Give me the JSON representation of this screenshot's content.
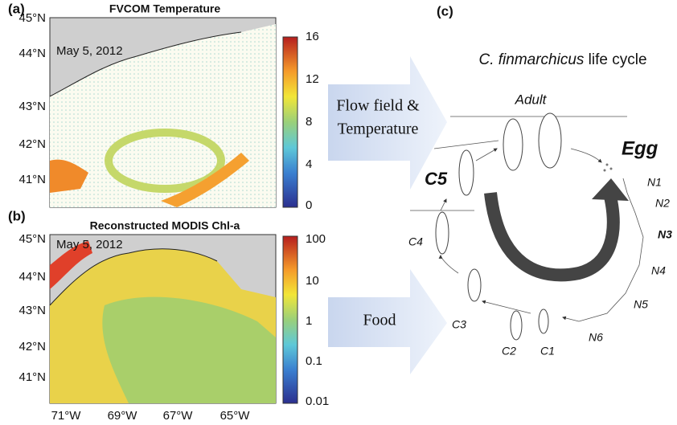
{
  "panel_a": {
    "label": "(a)",
    "title": "FVCOM Temperature",
    "date": "May 5, 2012",
    "lat_labels": [
      "45°N",
      "44°N",
      "43°N",
      "42°N",
      "41°N"
    ],
    "colorbar_labels": [
      "16",
      "12",
      "8",
      "4",
      "0"
    ]
  },
  "panel_b": {
    "label": "(b)",
    "title": "Reconstructed MODIS Chl-a",
    "date": "May 5, 2012",
    "lat_labels": [
      "45°N",
      "44°N",
      "43°N",
      "42°N",
      "41°N"
    ],
    "colorbar_labels": [
      "100",
      "10",
      "1",
      "0.1",
      "0.01"
    ],
    "lon_labels": [
      "71°W",
      "69°W",
      "67°W",
      "65°W"
    ]
  },
  "arrows": {
    "top": [
      "Flow field &",
      "Temperature"
    ],
    "bottom": "Food"
  },
  "panel_c": {
    "label": "(c)",
    "title_species": "C. finmarchicus",
    "title_rest": "life cycle",
    "stages": {
      "adult": "Adult",
      "egg": "Egg",
      "N1": "N1",
      "N2": "N2",
      "N3": "N3",
      "N4": "N4",
      "N5": "N5",
      "N6": "N6",
      "C1": "C1",
      "C2": "C2",
      "C3": "C3",
      "C4": "C4",
      "C5": "C5"
    }
  }
}
